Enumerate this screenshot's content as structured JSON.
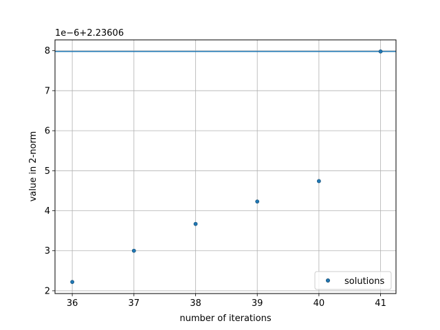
{
  "chart_data": {
    "type": "scatter",
    "xlabel": "number of iterations",
    "ylabel": "value in 2-norm",
    "offset_label": "1e−6+2.23606",
    "xlim": [
      35.72,
      41.25
    ],
    "ylim": [
      1.93,
      8.27
    ],
    "x_ticks": [
      36,
      37,
      38,
      39,
      40,
      41
    ],
    "y_ticks": [
      2,
      3,
      4,
      5,
      6,
      7,
      8
    ],
    "grid": true,
    "legend_position": "lower right",
    "series": [
      {
        "name": "solutions",
        "color": "#1f77b4",
        "x": [
          36,
          37,
          38,
          39,
          40,
          41
        ],
        "y": [
          2.22,
          3.0,
          3.67,
          4.23,
          4.74,
          7.98
        ]
      }
    ],
    "reference_lines": [
      {
        "orientation": "horizontal",
        "y": 7.98,
        "color": "#1f77b4"
      }
    ]
  }
}
